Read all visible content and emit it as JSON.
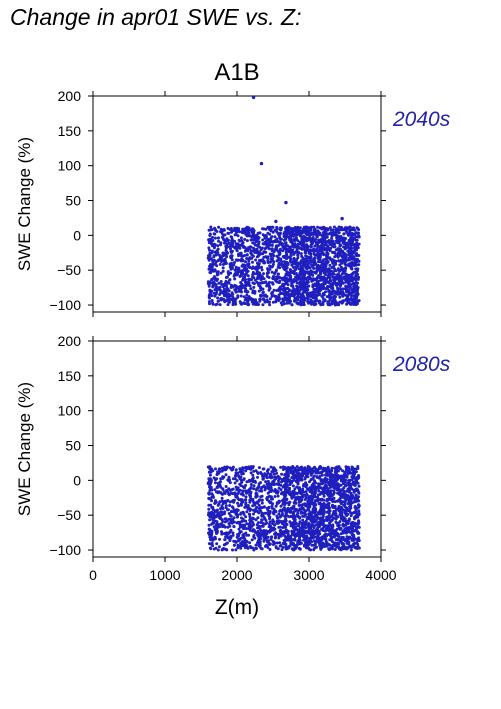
{
  "page_title": "Change in apr01 SWE vs. Z:",
  "scenario": "A1B",
  "colors": {
    "points": "#1f1fbf",
    "panel_label": "#2222aa",
    "axes": "#000000"
  },
  "chart_data": [
    {
      "type": "scatter",
      "panel_label": "2040s",
      "title": "",
      "xlabel": "",
      "ylabel": "SWE Change (%)",
      "xlim": [
        0,
        4000
      ],
      "ylim": [
        -110,
        200
      ],
      "xticks": [
        0,
        1000,
        2000,
        3000,
        4000
      ],
      "yticks": [
        -100,
        -50,
        0,
        50,
        100,
        150,
        200
      ],
      "x_tick_labels_shown": false,
      "grid": false,
      "cloud": {
        "x_range": [
          1600,
          3700
        ],
        "y_range": [
          -100,
          12
        ],
        "dense_x_start": 2650,
        "density": "dense"
      },
      "outliers": [
        {
          "x": 2230,
          "y": 198
        },
        {
          "x": 2340,
          "y": 103
        },
        {
          "x": 2680,
          "y": 47
        },
        {
          "x": 2540,
          "y": 20
        },
        {
          "x": 3460,
          "y": 24
        }
      ]
    },
    {
      "type": "scatter",
      "panel_label": "2080s",
      "title": "",
      "xlabel": "Z(m)",
      "ylabel": "SWE Change (%)",
      "xlim": [
        0,
        4000
      ],
      "ylim": [
        -110,
        200
      ],
      "xticks": [
        0,
        1000,
        2000,
        3000,
        4000
      ],
      "yticks": [
        -100,
        -50,
        0,
        50,
        100,
        150,
        200
      ],
      "x_tick_labels_shown": true,
      "grid": false,
      "cloud": {
        "x_range": [
          1600,
          3700
        ],
        "y_range": [
          -100,
          20
        ],
        "dense_x_start": 2650,
        "density": "dense"
      },
      "outliers": []
    }
  ]
}
